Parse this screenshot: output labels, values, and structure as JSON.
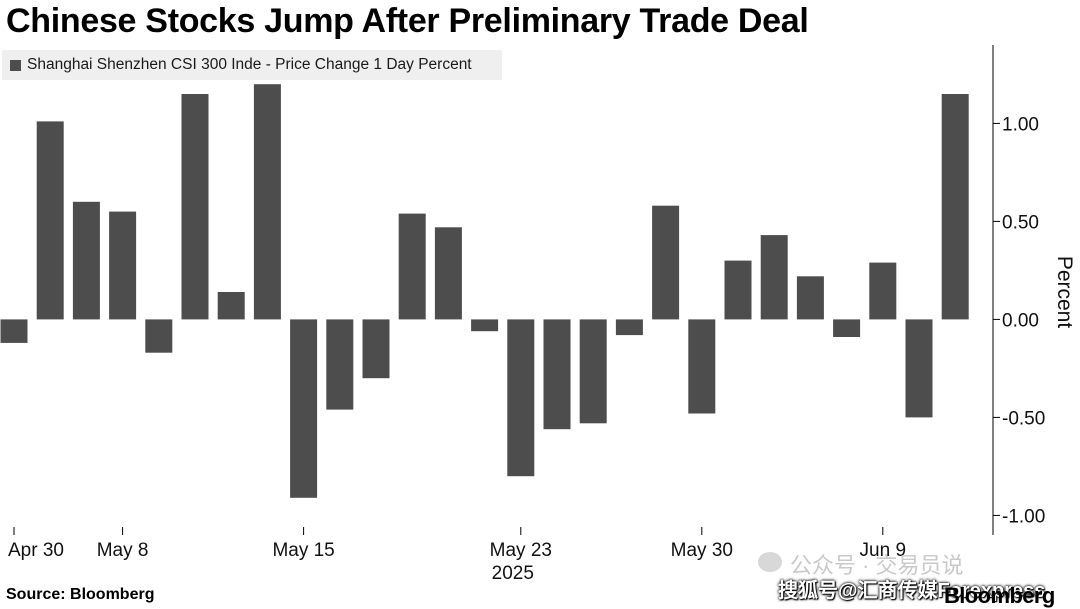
{
  "chart_data": {
    "type": "bar",
    "title": "Chinese Stocks Jump After Preliminary Trade Deal",
    "legend": "Shanghai Shenzhen CSI 300 Inde - Price Change 1 Day Percent",
    "legend_placement": "top-left",
    "ylabel": "Percent",
    "ylim": [
      -1.1,
      1.4
    ],
    "yticks": [
      1.0,
      0.5,
      0.0,
      -0.5,
      -1.0
    ],
    "ytick_labels": [
      "1.00",
      "0.50",
      "0.00",
      "-0.50",
      "-1.00"
    ],
    "grid": false,
    "bar_color": "#4d4d4d",
    "series": [
      {
        "values": [
          -0.12,
          1.01,
          0.6,
          0.55,
          -0.17,
          1.15,
          0.14,
          1.2,
          -0.91,
          -0.46,
          -0.3,
          0.54,
          0.47,
          -0.06,
          -0.8,
          -0.56,
          -0.53,
          -0.08,
          0.58,
          -0.48,
          0.3,
          0.43,
          0.22,
          -0.09,
          0.29,
          -0.5,
          1.15
        ]
      }
    ],
    "x_labels": [
      {
        "label": "Apr 30",
        "index": 0
      },
      {
        "label": "May 8",
        "index": 3
      },
      {
        "label": "May 15",
        "index": 8
      },
      {
        "label": "May 23",
        "index": 14
      },
      {
        "label": "May 30",
        "index": 19
      },
      {
        "label": "Jun 9",
        "index": 24
      }
    ],
    "year_label": {
      "label": "2025",
      "index": 14
    }
  },
  "footer": {
    "source": "Source: Bloomberg",
    "brand": "Bloomberg",
    "watermark": "公众号 · 交易员说",
    "caption": "搜狐号@汇商传媒Forexpress"
  }
}
